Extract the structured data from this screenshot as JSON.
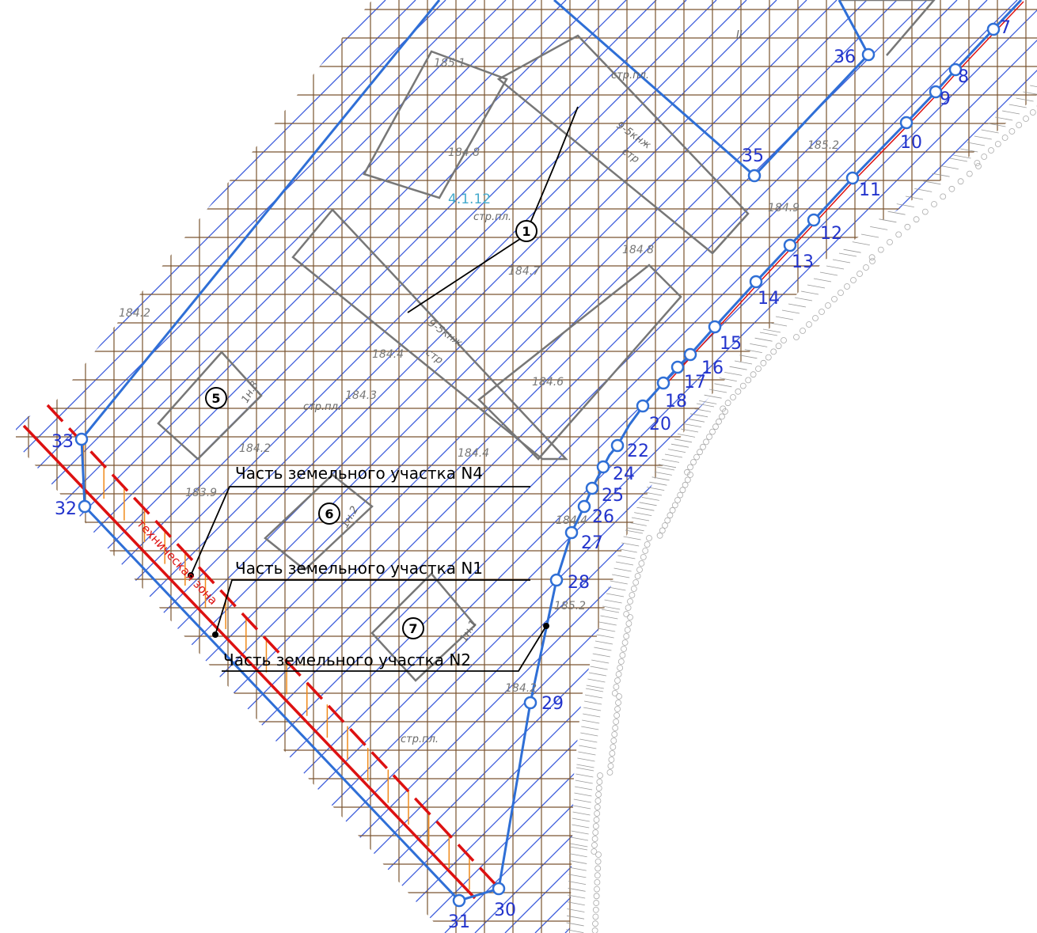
{
  "zone_code": "4.1.12",
  "tech_zone_label": "техническая зона",
  "callouts": [
    {
      "id": "n4",
      "text": "Часть земельного участка N4"
    },
    {
      "id": "n1",
      "text": "Часть земельного участка N1"
    },
    {
      "id": "n2",
      "text": "Часть земельного участка N2"
    }
  ],
  "building_numbers": [
    "1",
    "5",
    "6",
    "7"
  ],
  "point_labels": [
    "7",
    "8",
    "9",
    "10",
    "11",
    "12",
    "13",
    "14",
    "15",
    "16",
    "17",
    "18",
    "20",
    "22",
    "24",
    "25",
    "26",
    "27",
    "28",
    "29",
    "30",
    "31",
    "32",
    "33",
    "35",
    "36"
  ],
  "elevations": [
    "185.1",
    "184.8",
    "184.9",
    "185.2",
    "184.8",
    "184.7",
    "184.2",
    "184.4",
    "184.6",
    "184.3",
    "184.2",
    "184.4",
    "183.9",
    "184.4",
    "185.2",
    "184.2"
  ],
  "misc_labels": [
    "стр.пл.",
    "стр.пл.",
    "стр.пл.",
    "стр.пл.",
    "9-5кнж",
    "стр",
    "9-5кнж",
    "стр",
    "1н.3",
    "1н.2",
    "1н.1",
    "II"
  ],
  "colors": {
    "grid_brown": "#7a5530",
    "hatch_blue": "#3b5bdb",
    "boundary_blue": "#2f6fd6",
    "point_blue": "#2233cc",
    "red_line": "#dd1111",
    "orange_hatch": "#f08a1a",
    "building_gray": "#777777"
  }
}
